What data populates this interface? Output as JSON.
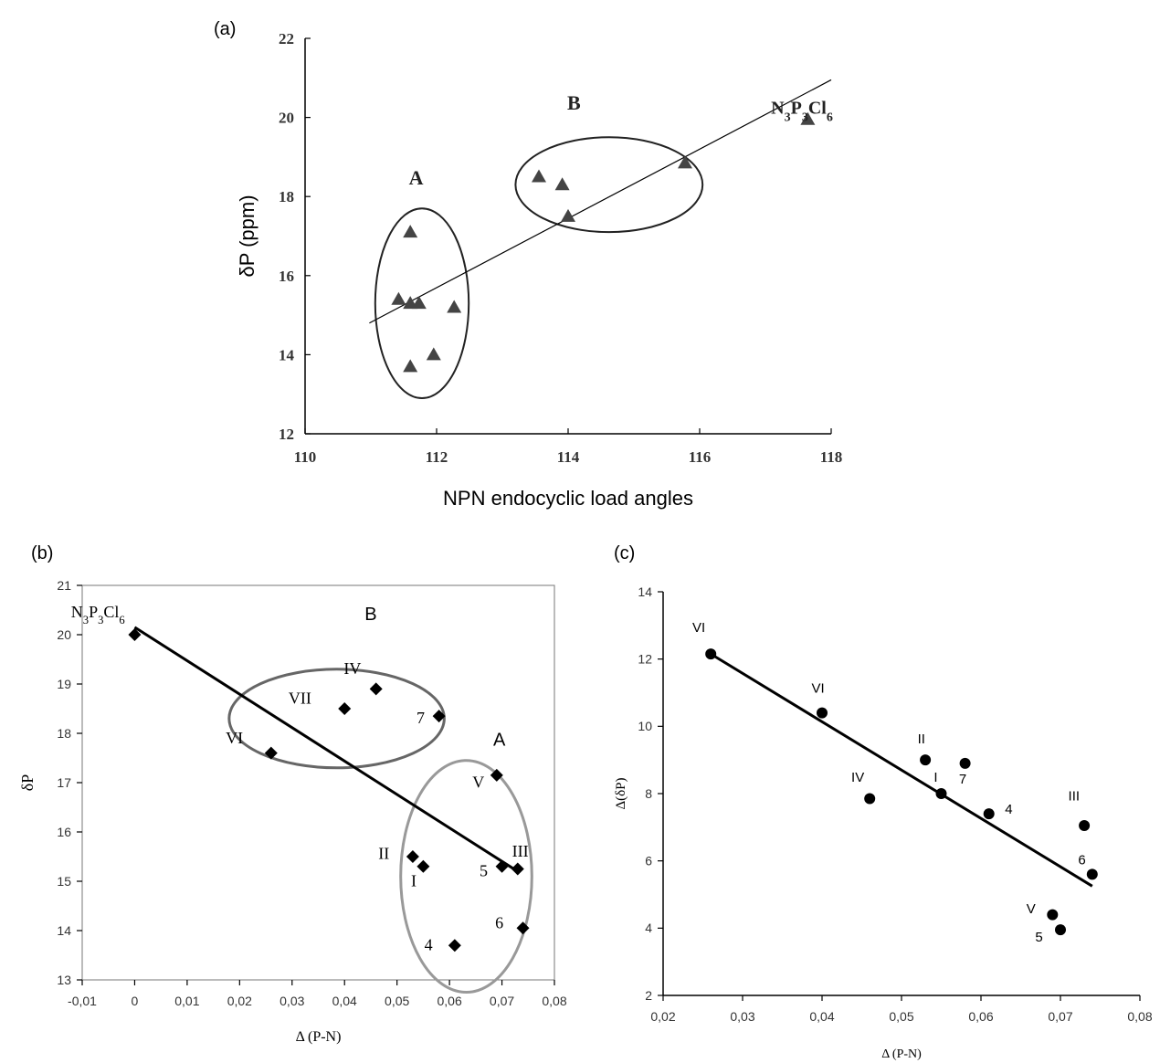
{
  "panel_labels": {
    "a": "(a)",
    "b": "(b)",
    "c": "(c)"
  },
  "chart_data": [
    {
      "id": "a",
      "type": "scatter",
      "title": "",
      "xlabel": "NPN endocyclic load angles",
      "ylabel": "δP (ppm)",
      "xlim": [
        110,
        119
      ],
      "ylim": [
        12,
        22
      ],
      "xticks": [
        "110",
        "112",
        "114",
        "116",
        "118"
      ],
      "yticks": [
        "12",
        "14",
        "16",
        "18",
        "20",
        "22"
      ],
      "grid": false,
      "marker": "triangle",
      "series": [
        {
          "points": [
            [
              111.6,
              15.4
            ],
            [
              111.8,
              17.1
            ],
            [
              111.8,
              15.3
            ],
            [
              111.95,
              15.3
            ],
            [
              112.55,
              15.2
            ],
            [
              112.2,
              14.0
            ],
            [
              111.8,
              13.7
            ],
            [
              114.0,
              18.5
            ],
            [
              114.4,
              18.3
            ],
            [
              114.5,
              17.5
            ],
            [
              116.5,
              18.85
            ],
            [
              118.6,
              19.95
            ]
          ]
        }
      ],
      "fit_line": [
        [
          111.1,
          14.8
        ],
        [
          119.0,
          20.95
        ]
      ],
      "groups": [
        {
          "label": "A",
          "center": [
            112.0,
            15.3
          ],
          "radii": [
            0.8,
            2.4
          ]
        },
        {
          "label": "B",
          "center": [
            115.2,
            18.3
          ],
          "radii": [
            1.6,
            1.2
          ]
        }
      ],
      "annotations": [
        {
          "text": "A",
          "at": [
            111.9,
            18.3
          ]
        },
        {
          "text": "B",
          "at": [
            114.6,
            20.2
          ]
        },
        {
          "text": "N3P3Cl6",
          "at": [
            118.5,
            20.1
          ]
        }
      ]
    },
    {
      "id": "b",
      "type": "scatter",
      "title": "",
      "xlabel": "Δ (P-N)",
      "ylabel": "δP",
      "xlim": [
        -0.01,
        0.08
      ],
      "ylim": [
        13,
        21
      ],
      "xticks": [
        "-0,01",
        "0",
        "0,01",
        "0,02",
        "0,03",
        "0,04",
        "0,05",
        "0,06",
        "0,07",
        "0,08"
      ],
      "yticks": [
        "13",
        "14",
        "15",
        "16",
        "17",
        "18",
        "19",
        "20",
        "21"
      ],
      "grid": false,
      "marker": "diamond",
      "series": [
        {
          "points": [
            [
              0.0,
              20.0
            ],
            [
              0.026,
              17.6
            ],
            [
              0.04,
              18.5
            ],
            [
              0.046,
              18.9
            ],
            [
              0.058,
              18.35
            ],
            [
              0.069,
              17.15
            ],
            [
              0.053,
              15.5
            ],
            [
              0.055,
              15.3
            ],
            [
              0.07,
              15.3
            ],
            [
              0.073,
              15.25
            ],
            [
              0.074,
              14.05
            ],
            [
              0.061,
              13.7
            ]
          ]
        }
      ],
      "fit_line": [
        [
          0.0,
          20.15
        ],
        [
          0.073,
          15.2
        ]
      ],
      "groups": [
        {
          "label": "B",
          "center": [
            0.0385,
            18.3
          ],
          "radii": [
            0.0205,
            1.0
          ]
        },
        {
          "label": "A",
          "center": [
            0.0632,
            15.1
          ],
          "radii": [
            0.0125,
            2.35
          ]
        }
      ],
      "annotations": [
        {
          "text": "N3P3Cl6",
          "at": [
            -0.007,
            20.35
          ]
        },
        {
          "text": "B",
          "at": [
            0.045,
            20.3
          ]
        },
        {
          "text": "A",
          "at": [
            0.0695,
            17.75
          ]
        },
        {
          "text": "IV",
          "at": [
            0.0415,
            19.2
          ]
        },
        {
          "text": "VII",
          "at": [
            0.0315,
            18.6
          ]
        },
        {
          "text": "7",
          "at": [
            0.0545,
            18.2
          ]
        },
        {
          "text": "VI",
          "at": [
            0.019,
            17.8
          ]
        },
        {
          "text": "V",
          "at": [
            0.0655,
            16.9
          ]
        },
        {
          "text": "II",
          "at": [
            0.0475,
            15.45
          ]
        },
        {
          "text": "I",
          "at": [
            0.0532,
            14.9
          ]
        },
        {
          "text": "5",
          "at": [
            0.0665,
            15.1
          ]
        },
        {
          "text": "III",
          "at": [
            0.0735,
            15.5
          ]
        },
        {
          "text": "6",
          "at": [
            0.0695,
            14.05
          ]
        },
        {
          "text": "4",
          "at": [
            0.056,
            13.6
          ]
        }
      ]
    },
    {
      "id": "c",
      "type": "scatter",
      "title": "",
      "xlabel": "Δ (P-N)",
      "ylabel": "Δ(δP)",
      "xlim": [
        0.02,
        0.08
      ],
      "ylim": [
        2,
        14
      ],
      "xticks": [
        "0,02",
        "0,03",
        "0,04",
        "0,05",
        "0,06",
        "0,07",
        "0,08"
      ],
      "yticks": [
        "2",
        "4",
        "6",
        "8",
        "10",
        "12",
        "14"
      ],
      "grid": false,
      "marker": "circle",
      "series": [
        {
          "points": [
            [
              0.026,
              12.15
            ],
            [
              0.04,
              10.4
            ],
            [
              0.053,
              9.0
            ],
            [
              0.058,
              8.9
            ],
            [
              0.046,
              7.85
            ],
            [
              0.055,
              8.0
            ],
            [
              0.061,
              7.4
            ],
            [
              0.073,
              7.05
            ],
            [
              0.074,
              5.6
            ],
            [
              0.069,
              4.4
            ],
            [
              0.07,
              3.95
            ]
          ]
        }
      ],
      "fit_line": [
        [
          0.026,
          12.15
        ],
        [
          0.074,
          5.25
        ]
      ],
      "annotations": [
        {
          "text": "VI",
          "at": [
            0.0245,
            12.8
          ]
        },
        {
          "text": "VI",
          "at": [
            0.0395,
            11.0
          ]
        },
        {
          "text": "II",
          "at": [
            0.0525,
            9.5
          ]
        },
        {
          "text": "7",
          "at": [
            0.0577,
            8.3
          ]
        },
        {
          "text": "IV",
          "at": [
            0.0445,
            8.35
          ]
        },
        {
          "text": "I",
          "at": [
            0.0543,
            8.35
          ]
        },
        {
          "text": "4",
          "at": [
            0.0635,
            7.4
          ]
        },
        {
          "text": "III",
          "at": [
            0.0717,
            7.8
          ]
        },
        {
          "text": "6",
          "at": [
            0.0727,
            5.9
          ]
        },
        {
          "text": "V",
          "at": [
            0.0663,
            4.45
          ]
        },
        {
          "text": "5",
          "at": [
            0.0673,
            3.6
          ]
        }
      ]
    }
  ]
}
